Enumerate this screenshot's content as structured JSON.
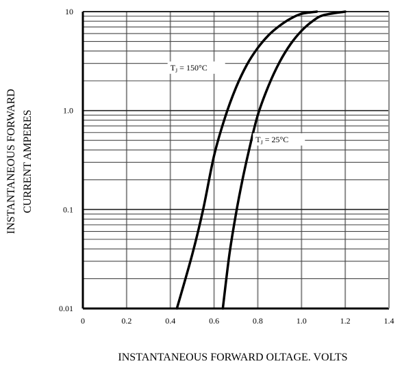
{
  "chart_data": {
    "type": "line",
    "xlabel": "INSTANTANEOUS FORWARD OLTAGE. VOLTS",
    "ylabel_line1": "INSTANTANEOUS FORWARD",
    "ylabel_line2": "CURRENT AMPERES",
    "xlim": [
      0,
      1.4
    ],
    "ylim": [
      0.01,
      10
    ],
    "y_scale": "log",
    "x_ticks": [
      "0",
      "0.2",
      "0.4",
      "0.6",
      "0.8",
      "1.0",
      "1.2",
      "1.4"
    ],
    "y_ticks": [
      "0.01",
      "0.1",
      "1.0",
      "10"
    ],
    "grid": true,
    "series": [
      {
        "name": "TJ = 150°C",
        "label_main": "T",
        "label_sub": "J",
        "label_rest": " = 150°C",
        "x": [
          0.43,
          0.5,
          0.55,
          0.6,
          0.65,
          0.7,
          0.75,
          0.8,
          0.85,
          0.9,
          0.95,
          1.0,
          1.07
        ],
        "y": [
          0.01,
          0.035,
          0.1,
          0.35,
          0.85,
          1.7,
          2.9,
          4.3,
          5.8,
          7.2,
          8.5,
          9.5,
          10
        ]
      },
      {
        "name": "TJ = 25°C",
        "label_main": "T",
        "label_sub": "J",
        "label_rest": " = 25°C",
        "x": [
          0.64,
          0.67,
          0.7,
          0.73,
          0.76,
          0.8,
          0.85,
          0.9,
          0.95,
          1.0,
          1.05,
          1.1,
          1.2
        ],
        "y": [
          0.01,
          0.035,
          0.09,
          0.2,
          0.4,
          0.9,
          1.8,
          3.1,
          4.7,
          6.4,
          8.0,
          9.2,
          10
        ]
      }
    ]
  }
}
